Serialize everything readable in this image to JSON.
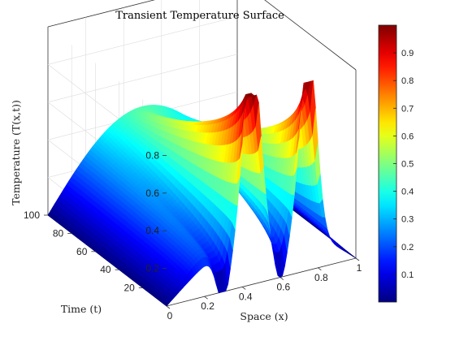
{
  "chart_data": {
    "type": "surface",
    "title": "Transient Temperature Surface",
    "xlabel": "Space (x)",
    "ylabel": "Time (t)",
    "zlabel": "Temperature (T(x,t))",
    "xlim": [
      0,
      1
    ],
    "ylim": [
      0,
      100
    ],
    "zlim": [
      0,
      1
    ],
    "x_ticks": [
      "0",
      "0.2",
      "0.4",
      "0.6",
      "0.8",
      "1"
    ],
    "y_ticks": [
      "20",
      "40",
      "60",
      "80",
      "100"
    ],
    "z_ticks": [
      "0.2",
      "0.4",
      "0.6",
      "0.8"
    ],
    "colormap": "jet",
    "colorbar_range": [
      0,
      1
    ],
    "colorbar_ticks": [
      "0.1",
      "0.2",
      "0.3",
      "0.4",
      "0.5",
      "0.6",
      "0.7",
      "0.8",
      "0.9"
    ],
    "grid": true,
    "surface_profiles": [
      {
        "t": 0,
        "x": [
          0,
          0.1,
          0.2,
          0.3,
          0.35,
          0.4,
          0.45,
          0.5,
          0.55,
          0.6,
          0.65,
          0.7,
          0.75,
          0.8,
          0.9,
          1.0
        ],
        "T": [
          0.0,
          0.28,
          0.1,
          0.0,
          0.2,
          0.6,
          1.0,
          0.6,
          0.2,
          0.0,
          0.2,
          0.6,
          1.0,
          0.6,
          0.1,
          0.0
        ]
      },
      {
        "t": 100,
        "x": [
          0,
          0.1,
          0.2,
          0.3,
          0.4,
          0.5,
          0.6,
          0.7,
          0.8,
          0.9,
          1.0
        ],
        "T": [
          0.0,
          0.31,
          0.59,
          0.81,
          0.95,
          1.0,
          0.95,
          0.81,
          0.59,
          0.31,
          0.0
        ]
      }
    ]
  }
}
